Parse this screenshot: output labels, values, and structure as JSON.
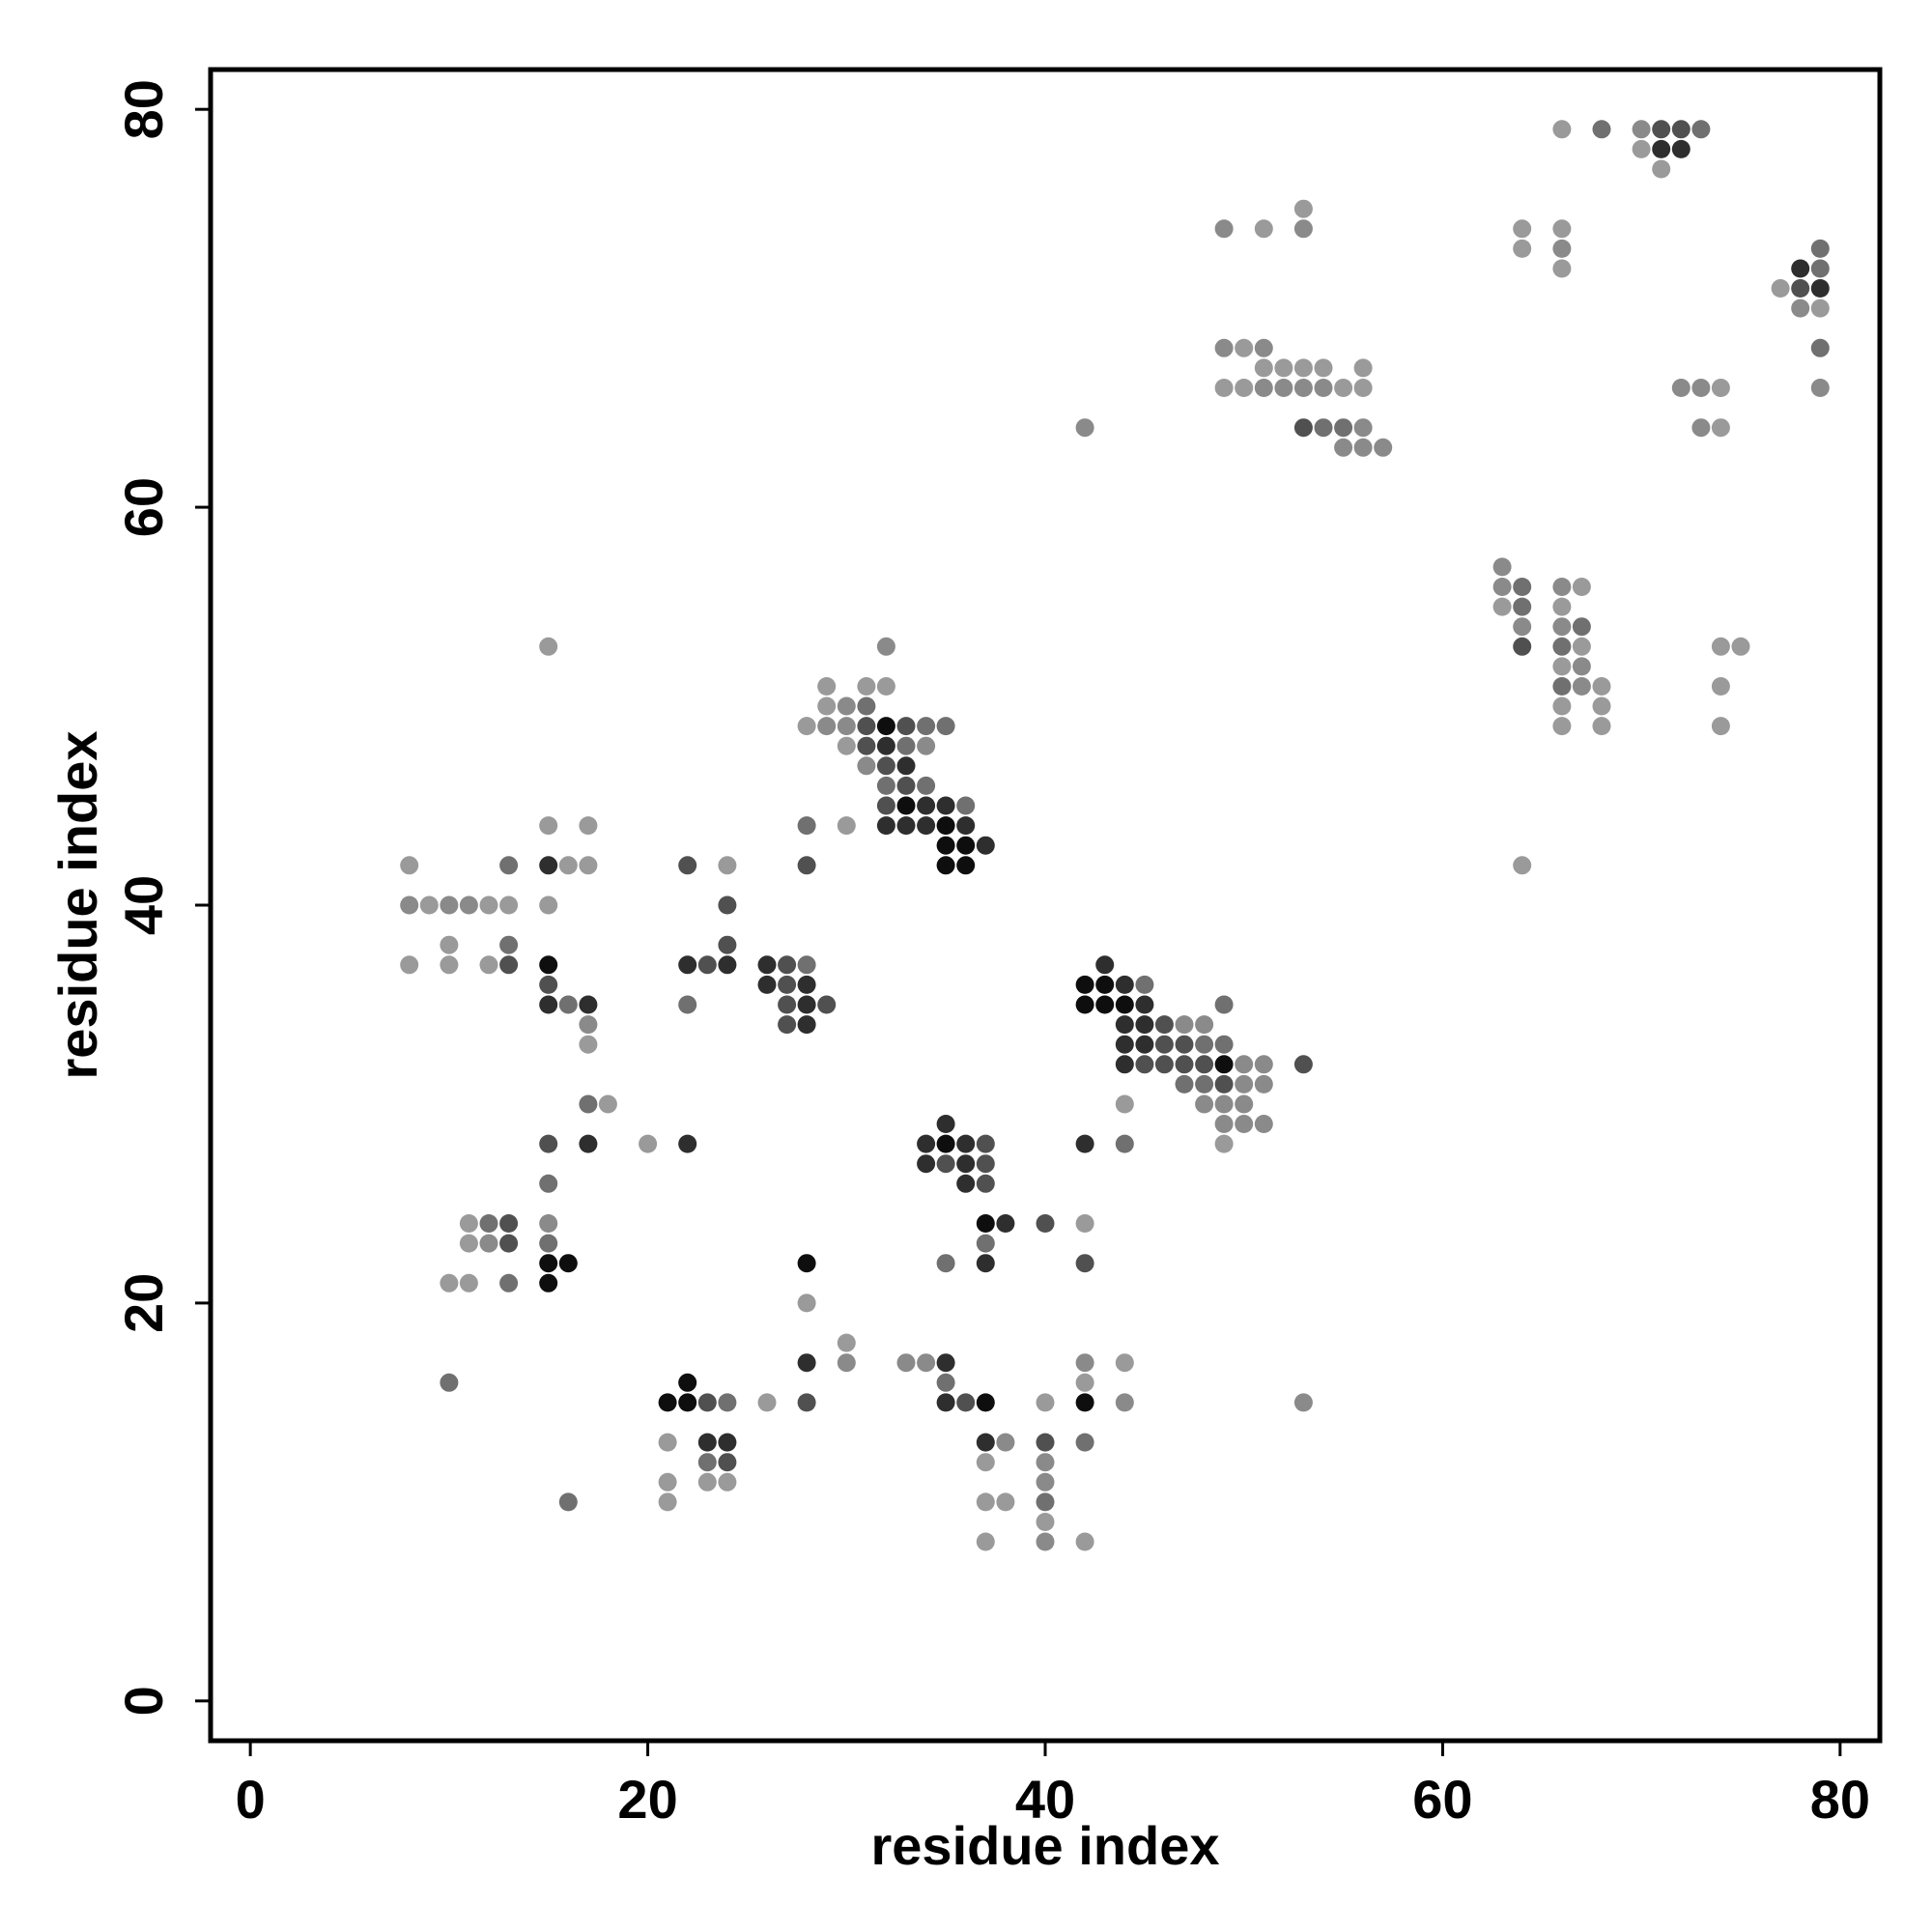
{
  "chart_data": {
    "type": "scatter",
    "xlabel": "residue index",
    "ylabel": "residue index",
    "xlim": [
      -2,
      82
    ],
    "ylim": [
      -2,
      82
    ],
    "xticks": [
      0,
      20,
      40,
      60,
      80
    ],
    "yticks": [
      0,
      20,
      40,
      60,
      80
    ],
    "grid": false,
    "colors": {
      "1": "#9a9a9a",
      "2": "#8a8a8a",
      "3": "#707070",
      "4": "#505050",
      "5": "#2e2e2e",
      "6": "#0e0e0e"
    },
    "points": [
      [
        8,
        42,
        1
      ],
      [
        8,
        40,
        2
      ],
      [
        9,
        40,
        1
      ],
      [
        10,
        40,
        2
      ],
      [
        11,
        40,
        2
      ],
      [
        12,
        40,
        1
      ],
      [
        13,
        40,
        1
      ],
      [
        8,
        37,
        1
      ],
      [
        10,
        38,
        1
      ],
      [
        10,
        37,
        1
      ],
      [
        12,
        37,
        1
      ],
      [
        13,
        38,
        3
      ],
      [
        13,
        37,
        4
      ],
      [
        13,
        42,
        3
      ],
      [
        15,
        44,
        1
      ],
      [
        15,
        42,
        5
      ],
      [
        16,
        42,
        1
      ],
      [
        17,
        42,
        1
      ],
      [
        17,
        44,
        1
      ],
      [
        15,
        40,
        1
      ],
      [
        15,
        37,
        6
      ],
      [
        15,
        36,
        4
      ],
      [
        15,
        35,
        5
      ],
      [
        16,
        35,
        3
      ],
      [
        17,
        35,
        5
      ],
      [
        17,
        34,
        2
      ],
      [
        17,
        33,
        1
      ],
      [
        17,
        30,
        3
      ],
      [
        18,
        30,
        1
      ],
      [
        15,
        28,
        4
      ],
      [
        17,
        28,
        5
      ],
      [
        15,
        26,
        3
      ],
      [
        15,
        24,
        2
      ],
      [
        15,
        23,
        3
      ],
      [
        15,
        22,
        6
      ],
      [
        16,
        22,
        6
      ],
      [
        15,
        21,
        6
      ],
      [
        11,
        24,
        1
      ],
      [
        11,
        23,
        1
      ],
      [
        12,
        24,
        3
      ],
      [
        12,
        23,
        2
      ],
      [
        13,
        24,
        4
      ],
      [
        13,
        23,
        4
      ],
      [
        10,
        21,
        1
      ],
      [
        11,
        21,
        1
      ],
      [
        13,
        21,
        3
      ],
      [
        10,
        16,
        3
      ],
      [
        16,
        10,
        3
      ],
      [
        15,
        53,
        1
      ],
      [
        22,
        42,
        4
      ],
      [
        24,
        42,
        1
      ],
      [
        24,
        40,
        4
      ],
      [
        24,
        38,
        4
      ],
      [
        22,
        37,
        5
      ],
      [
        23,
        37,
        4
      ],
      [
        24,
        37,
        5
      ],
      [
        22,
        35,
        3
      ],
      [
        20,
        28,
        1
      ],
      [
        22,
        28,
        5
      ],
      [
        26,
        37,
        5
      ],
      [
        27,
        37,
        4
      ],
      [
        28,
        37,
        3
      ],
      [
        26,
        36,
        5
      ],
      [
        27,
        36,
        4
      ],
      [
        28,
        36,
        5
      ],
      [
        27,
        35,
        4
      ],
      [
        28,
        35,
        5
      ],
      [
        29,
        35,
        4
      ],
      [
        27,
        34,
        4
      ],
      [
        28,
        34,
        5
      ],
      [
        28,
        44,
        3
      ],
      [
        28,
        42,
        4
      ],
      [
        30,
        44,
        1
      ],
      [
        28,
        49,
        1
      ],
      [
        29,
        51,
        1
      ],
      [
        29,
        50,
        1
      ],
      [
        29,
        49,
        2
      ],
      [
        30,
        50,
        2
      ],
      [
        30,
        49,
        2
      ],
      [
        30,
        48,
        1
      ],
      [
        31,
        51,
        1
      ],
      [
        31,
        50,
        3
      ],
      [
        31,
        49,
        4
      ],
      [
        31,
        48,
        4
      ],
      [
        31,
        47,
        2
      ],
      [
        32,
        53,
        2
      ],
      [
        32,
        51,
        1
      ],
      [
        32,
        49,
        6
      ],
      [
        32,
        48,
        5
      ],
      [
        32,
        47,
        4
      ],
      [
        32,
        46,
        3
      ],
      [
        32,
        45,
        4
      ],
      [
        32,
        44,
        5
      ],
      [
        33,
        49,
        4
      ],
      [
        33,
        48,
        3
      ],
      [
        33,
        47,
        5
      ],
      [
        33,
        46,
        4
      ],
      [
        33,
        45,
        6
      ],
      [
        33,
        44,
        5
      ],
      [
        34,
        49,
        3
      ],
      [
        34,
        48,
        2
      ],
      [
        34,
        46,
        3
      ],
      [
        34,
        45,
        5
      ],
      [
        34,
        44,
        5
      ],
      [
        35,
        49,
        3
      ],
      [
        35,
        45,
        5
      ],
      [
        35,
        44,
        6
      ],
      [
        35,
        43,
        6
      ],
      [
        35,
        42,
        6
      ],
      [
        36,
        45,
        3
      ],
      [
        36,
        44,
        5
      ],
      [
        36,
        43,
        6
      ],
      [
        36,
        42,
        6
      ],
      [
        37,
        43,
        5
      ],
      [
        42,
        36,
        6
      ],
      [
        43,
        37,
        5
      ],
      [
        43,
        36,
        6
      ],
      [
        44,
        36,
        5
      ],
      [
        45,
        36,
        3
      ],
      [
        42,
        35,
        6
      ],
      [
        43,
        35,
        6
      ],
      [
        44,
        35,
        6
      ],
      [
        45,
        35,
        5
      ],
      [
        44,
        34,
        5
      ],
      [
        45,
        34,
        5
      ],
      [
        46,
        34,
        4
      ],
      [
        47,
        34,
        2
      ],
      [
        48,
        34,
        2
      ],
      [
        49,
        35,
        3
      ],
      [
        44,
        33,
        5
      ],
      [
        45,
        33,
        5
      ],
      [
        46,
        33,
        4
      ],
      [
        47,
        33,
        4
      ],
      [
        48,
        33,
        3
      ],
      [
        49,
        33,
        3
      ],
      [
        44,
        32,
        5
      ],
      [
        45,
        32,
        4
      ],
      [
        46,
        32,
        4
      ],
      [
        47,
        32,
        4
      ],
      [
        48,
        32,
        4
      ],
      [
        49,
        32,
        6
      ],
      [
        50,
        32,
        2
      ],
      [
        51,
        32,
        2
      ],
      [
        53,
        32,
        4
      ],
      [
        47,
        31,
        3
      ],
      [
        48,
        31,
        3
      ],
      [
        49,
        31,
        4
      ],
      [
        50,
        31,
        2
      ],
      [
        51,
        31,
        2
      ],
      [
        48,
        30,
        2
      ],
      [
        49,
        30,
        2
      ],
      [
        50,
        30,
        2
      ],
      [
        49,
        29,
        2
      ],
      [
        50,
        29,
        2
      ],
      [
        51,
        29,
        2
      ],
      [
        49,
        28,
        1
      ],
      [
        44,
        30,
        1
      ],
      [
        42,
        28,
        5
      ],
      [
        44,
        28,
        3
      ],
      [
        34,
        28,
        5
      ],
      [
        35,
        29,
        5
      ],
      [
        35,
        28,
        6
      ],
      [
        36,
        28,
        5
      ],
      [
        37,
        28,
        4
      ],
      [
        34,
        27,
        5
      ],
      [
        35,
        27,
        4
      ],
      [
        36,
        27,
        5
      ],
      [
        37,
        27,
        4
      ],
      [
        36,
        26,
        5
      ],
      [
        37,
        26,
        4
      ],
      [
        37,
        24,
        6
      ],
      [
        38,
        24,
        5
      ],
      [
        40,
        24,
        4
      ],
      [
        42,
        24,
        1
      ],
      [
        37,
        23,
        3
      ],
      [
        35,
        22,
        3
      ],
      [
        37,
        22,
        5
      ],
      [
        42,
        22,
        4
      ],
      [
        28,
        22,
        6
      ],
      [
        28,
        20,
        1
      ],
      [
        28,
        17,
        5
      ],
      [
        28,
        15,
        4
      ],
      [
        30,
        18,
        1
      ],
      [
        30,
        17,
        2
      ],
      [
        26,
        15,
        1
      ],
      [
        21,
        15,
        6
      ],
      [
        22,
        16,
        6
      ],
      [
        22,
        15,
        6
      ],
      [
        23,
        15,
        4
      ],
      [
        24,
        15,
        3
      ],
      [
        21,
        13,
        1
      ],
      [
        23,
        13,
        5
      ],
      [
        24,
        13,
        5
      ],
      [
        23,
        12,
        3
      ],
      [
        24,
        12,
        4
      ],
      [
        21,
        11,
        1
      ],
      [
        23,
        11,
        1
      ],
      [
        24,
        11,
        1
      ],
      [
        21,
        10,
        1
      ],
      [
        33,
        17,
        2
      ],
      [
        34,
        17,
        2
      ],
      [
        35,
        17,
        5
      ],
      [
        35,
        16,
        3
      ],
      [
        35,
        15,
        5
      ],
      [
        36,
        15,
        4
      ],
      [
        37,
        15,
        6
      ],
      [
        37,
        13,
        5
      ],
      [
        38,
        13,
        2
      ],
      [
        37,
        12,
        1
      ],
      [
        37,
        10,
        1
      ],
      [
        38,
        10,
        1
      ],
      [
        37,
        8,
        1
      ],
      [
        40,
        15,
        1
      ],
      [
        40,
        13,
        4
      ],
      [
        40,
        12,
        2
      ],
      [
        40,
        11,
        2
      ],
      [
        40,
        10,
        3
      ],
      [
        40,
        9,
        1
      ],
      [
        40,
        8,
        2
      ],
      [
        42,
        17,
        2
      ],
      [
        42,
        16,
        1
      ],
      [
        42,
        15,
        6
      ],
      [
        44,
        17,
        1
      ],
      [
        44,
        15,
        2
      ],
      [
        42,
        13,
        3
      ],
      [
        42,
        8,
        1
      ],
      [
        53,
        15,
        2
      ],
      [
        42,
        64,
        2
      ],
      [
        49,
        74,
        2
      ],
      [
        51,
        74,
        1
      ],
      [
        53,
        75,
        1
      ],
      [
        53,
        74,
        2
      ],
      [
        49,
        68,
        2
      ],
      [
        50,
        68,
        1
      ],
      [
        51,
        68,
        2
      ],
      [
        51,
        67,
        1
      ],
      [
        52,
        67,
        1
      ],
      [
        53,
        67,
        1
      ],
      [
        54,
        67,
        1
      ],
      [
        56,
        67,
        1
      ],
      [
        49,
        66,
        1
      ],
      [
        50,
        66,
        1
      ],
      [
        51,
        66,
        2
      ],
      [
        52,
        66,
        2
      ],
      [
        53,
        66,
        2
      ],
      [
        54,
        66,
        2
      ],
      [
        55,
        66,
        1
      ],
      [
        56,
        66,
        1
      ],
      [
        53,
        64,
        4
      ],
      [
        54,
        64,
        3
      ],
      [
        55,
        64,
        3
      ],
      [
        56,
        64,
        2
      ],
      [
        55,
        63,
        2
      ],
      [
        56,
        63,
        2
      ],
      [
        57,
        63,
        2
      ],
      [
        66,
        79,
        1
      ],
      [
        68,
        79,
        3
      ],
      [
        70,
        79,
        2
      ],
      [
        71,
        79,
        4
      ],
      [
        72,
        79,
        4
      ],
      [
        73,
        79,
        3
      ],
      [
        70,
        78,
        1
      ],
      [
        71,
        78,
        5
      ],
      [
        72,
        78,
        5
      ],
      [
        71,
        77,
        1
      ],
      [
        64,
        74,
        1
      ],
      [
        66,
        74,
        1
      ],
      [
        64,
        73,
        1
      ],
      [
        66,
        73,
        2
      ],
      [
        66,
        72,
        1
      ],
      [
        77,
        71,
        1
      ],
      [
        78,
        72,
        5
      ],
      [
        79,
        73,
        3
      ],
      [
        78,
        71,
        4
      ],
      [
        79,
        72,
        3
      ],
      [
        79,
        71,
        5
      ],
      [
        78,
        70,
        2
      ],
      [
        79,
        70,
        1
      ],
      [
        79,
        68,
        3
      ],
      [
        79,
        66,
        2
      ],
      [
        72,
        66,
        2
      ],
      [
        73,
        66,
        2
      ],
      [
        74,
        66,
        1
      ],
      [
        73,
        64,
        2
      ],
      [
        74,
        64,
        1
      ],
      [
        63,
        57,
        2
      ],
      [
        63,
        56,
        2
      ],
      [
        64,
        56,
        3
      ],
      [
        63,
        55,
        1
      ],
      [
        64,
        55,
        3
      ],
      [
        64,
        54,
        2
      ],
      [
        64,
        53,
        4
      ],
      [
        64,
        42,
        1
      ],
      [
        66,
        56,
        2
      ],
      [
        67,
        56,
        1
      ],
      [
        66,
        55,
        1
      ],
      [
        66,
        54,
        2
      ],
      [
        67,
        54,
        3
      ],
      [
        66,
        53,
        3
      ],
      [
        67,
        53,
        1
      ],
      [
        66,
        52,
        1
      ],
      [
        67,
        52,
        2
      ],
      [
        66,
        51,
        3
      ],
      [
        67,
        51,
        2
      ],
      [
        68,
        51,
        1
      ],
      [
        66,
        50,
        1
      ],
      [
        68,
        50,
        1
      ],
      [
        66,
        49,
        1
      ],
      [
        68,
        49,
        1
      ],
      [
        74,
        53,
        1
      ],
      [
        75,
        53,
        1
      ],
      [
        74,
        51,
        1
      ],
      [
        74,
        49,
        1
      ]
    ]
  }
}
